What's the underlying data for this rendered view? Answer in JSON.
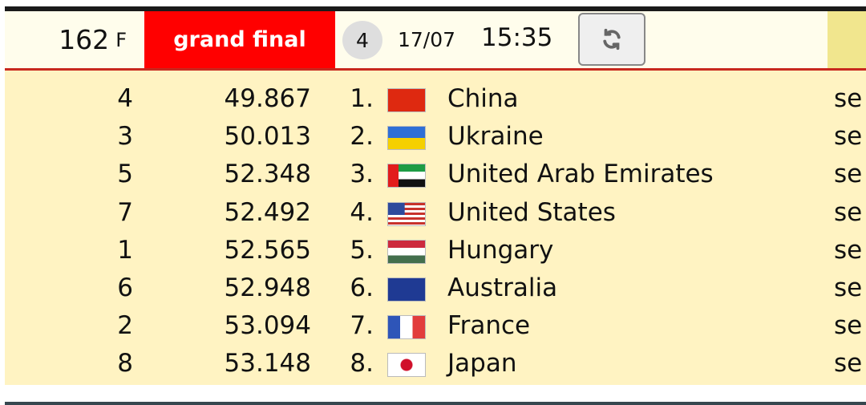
{
  "header": {
    "event_number": "162",
    "event_suffix": "F",
    "round": "grand final",
    "heat": "4",
    "date": "17/07",
    "time": "15:35",
    "refresh_icon": "refresh-icon"
  },
  "rows": [
    {
      "lane": "4",
      "time": "49.867",
      "rank": "1.",
      "flag": "cn",
      "country": "China",
      "extra": "se"
    },
    {
      "lane": "3",
      "time": "50.013",
      "rank": "2.",
      "flag": "ua",
      "country": "Ukraine",
      "extra": "se"
    },
    {
      "lane": "5",
      "time": "52.348",
      "rank": "3.",
      "flag": "ae",
      "country": "United Arab Emirates",
      "extra": "se"
    },
    {
      "lane": "7",
      "time": "52.492",
      "rank": "4.",
      "flag": "us",
      "country": "United States",
      "extra": "se"
    },
    {
      "lane": "1",
      "time": "52.565",
      "rank": "5.",
      "flag": "hu",
      "country": "Hungary",
      "extra": "se"
    },
    {
      "lane": "6",
      "time": "52.948",
      "rank": "6.",
      "flag": "au",
      "country": "Australia",
      "extra": "se"
    },
    {
      "lane": "2",
      "time": "53.094",
      "rank": "7.",
      "flag": "fr",
      "country": "France",
      "extra": "se"
    },
    {
      "lane": "8",
      "time": "53.148",
      "rank": "8.",
      "flag": "jp",
      "country": "Japan",
      "extra": "se"
    }
  ],
  "colors": {
    "accent": "#ff0000",
    "row_bg": "#fff3c2",
    "header_bg": "#fffdec"
  }
}
